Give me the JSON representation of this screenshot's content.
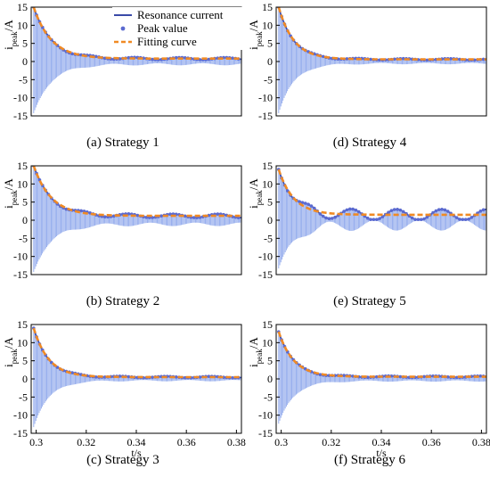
{
  "figure": {
    "legend": {
      "entries": [
        {
          "label": "Resonance current",
          "style": "line",
          "color": "#3a4aa8"
        },
        {
          "label": "Peak value",
          "style": "dot",
          "color": "#5b6ad0"
        },
        {
          "label": "Fitting curve",
          "style": "dash",
          "color": "#f08a24"
        }
      ],
      "placement": "top-center"
    },
    "colors": {
      "oscillation": "#8fa8ec",
      "resonance": "#3a4aa8",
      "peak": "#5b6ad0",
      "fit": "#f08a24"
    }
  },
  "chart_data": [
    {
      "type": "line",
      "id": "a",
      "caption": "(a) Strategy 1",
      "ylabel": "i_peak/A",
      "ylabel_main": "i",
      "ylabel_sub": "peak",
      "ylabel_tail": "/A",
      "xlabel": "",
      "xlim": [
        0.298,
        0.382
      ],
      "ylim": [
        -15,
        15
      ],
      "yticks": [
        15,
        10,
        5,
        0,
        -5,
        -10,
        -15
      ],
      "xticks": [],
      "xtick_labels": [],
      "initial_amplitude": 15,
      "decay_tau": 0.007,
      "residual": 0.8,
      "wobble": 0.3,
      "series": [
        {
          "name": "Resonance current"
        },
        {
          "name": "Peak value"
        },
        {
          "name": "Fitting curve"
        }
      ]
    },
    {
      "type": "line",
      "id": "b",
      "caption": "(b) Strategy 2",
      "ylabel": "i_peak/A",
      "ylabel_main": "i",
      "ylabel_sub": "peak",
      "ylabel_tail": "/A",
      "xlabel": "",
      "xlim": [
        0.298,
        0.382
      ],
      "ylim": [
        -15,
        15
      ],
      "yticks": [
        15,
        10,
        5,
        0,
        -5,
        -10,
        -15
      ],
      "xticks": [],
      "xtick_labels": [],
      "initial_amplitude": 15,
      "decay_tau": 0.007,
      "residual": 1.2,
      "wobble": 0.5,
      "series": [
        {
          "name": "Resonance current"
        },
        {
          "name": "Peak value"
        },
        {
          "name": "Fitting curve"
        }
      ]
    },
    {
      "type": "line",
      "id": "c",
      "caption": "(c) Strategy 3",
      "ylabel": "i_peak/A",
      "ylabel_main": "i",
      "ylabel_sub": "peak",
      "ylabel_tail": "/A",
      "xlabel": "t/s",
      "xlim": [
        0.298,
        0.382
      ],
      "ylim": [
        -15,
        15
      ],
      "yticks": [
        15,
        10,
        5,
        0,
        -5,
        -10,
        -15
      ],
      "xticks": [
        0.3,
        0.32,
        0.34,
        0.36,
        0.38
      ],
      "xtick_labels": [
        "0.3",
        "0.32",
        "0.34",
        "0.36",
        "0.38"
      ],
      "initial_amplitude": 14,
      "decay_tau": 0.006,
      "residual": 0.5,
      "wobble": 0.2,
      "series": [
        {
          "name": "Resonance current"
        },
        {
          "name": "Peak value"
        },
        {
          "name": "Fitting curve"
        }
      ]
    },
    {
      "type": "line",
      "id": "d",
      "caption": "(d) Strategy 4",
      "ylabel": "i_peak/A",
      "ylabel_main": "i",
      "ylabel_sub": "peak",
      "ylabel_tail": "/A",
      "xlabel": "",
      "xlim": [
        0.298,
        0.382
      ],
      "ylim": [
        -15,
        15
      ],
      "yticks": [
        15,
        10,
        5,
        0,
        -5,
        -10,
        -15
      ],
      "xticks": [],
      "xtick_labels": [],
      "initial_amplitude": 15,
      "decay_tau": 0.006,
      "residual": 0.6,
      "wobble": 0.2,
      "series": [
        {
          "name": "Resonance current"
        },
        {
          "name": "Peak value"
        },
        {
          "name": "Fitting curve"
        }
      ]
    },
    {
      "type": "line",
      "id": "e",
      "caption": "(e) Strategy 5",
      "ylabel": "i_peak/A",
      "ylabel_main": "i",
      "ylabel_sub": "peak",
      "ylabel_tail": "/A",
      "xlabel": "",
      "xlim": [
        0.298,
        0.382
      ],
      "ylim": [
        -15,
        15
      ],
      "yticks": [
        15,
        10,
        5,
        0,
        -5,
        -10,
        -15
      ],
      "xticks": [],
      "xtick_labels": [],
      "initial_amplitude": 14,
      "decay_tau": 0.006,
      "residual": 1.5,
      "wobble": 1.5,
      "series": [
        {
          "name": "Resonance current"
        },
        {
          "name": "Peak value"
        },
        {
          "name": "Fitting curve"
        }
      ]
    },
    {
      "type": "line",
      "id": "f",
      "caption": "(f) Strategy 6",
      "ylabel": "i_peak/A",
      "ylabel_main": "i",
      "ylabel_sub": "peak",
      "ylabel_tail": "/A",
      "xlabel": "t/s",
      "xlim": [
        0.298,
        0.382
      ],
      "ylim": [
        -15,
        15
      ],
      "yticks": [
        15,
        10,
        5,
        0,
        -5,
        -10,
        -15
      ],
      "xticks": [
        0.3,
        0.32,
        0.34,
        0.36,
        0.38
      ],
      "xtick_labels": [
        "0.3",
        "0.32",
        "0.34",
        "0.36",
        "0.38"
      ],
      "initial_amplitude": 13,
      "decay_tau": 0.006,
      "residual": 0.6,
      "wobble": 0.2,
      "series": [
        {
          "name": "Resonance current"
        },
        {
          "name": "Peak value"
        },
        {
          "name": "Fitting curve"
        }
      ]
    }
  ]
}
